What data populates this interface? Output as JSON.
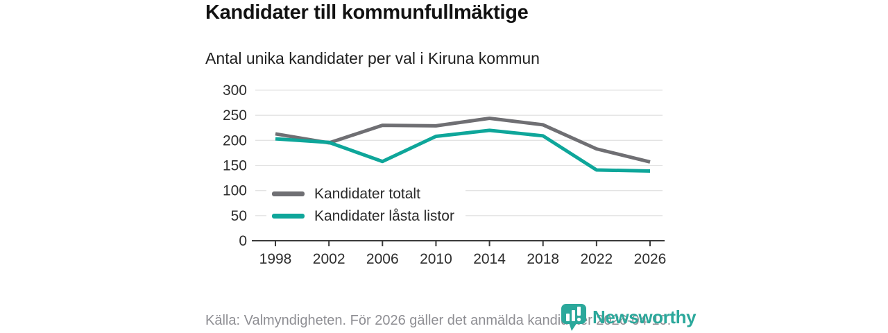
{
  "header": {
    "title": "Kandidater till kommunfullmäktige",
    "subtitle": "Antal unika kandidater per val i Kiruna kommun"
  },
  "chart_data": {
    "type": "line",
    "title": "Kandidater till kommunfullmäktige",
    "subtitle": "Antal unika kandidater per val i Kiruna kommun",
    "categories": [
      "1998",
      "2002",
      "2006",
      "2010",
      "2014",
      "2018",
      "2022",
      "2026"
    ],
    "series": [
      {
        "name": "Kandidater totalt",
        "color": "#6F6F73",
        "values": [
          213,
          195,
          230,
          229,
          244,
          231,
          183,
          157
        ]
      },
      {
        "name": "Kandidater låsta listor",
        "color": "#0EA69A",
        "values": [
          203,
          196,
          158,
          208,
          220,
          209,
          141,
          139
        ]
      }
    ],
    "xlabel": "",
    "ylabel": "",
    "ylim": [
      0,
      300
    ],
    "ytick_step": 50,
    "grid": "horizontal",
    "legend_position": "inside-bottom-left"
  },
  "footer": {
    "source": "Källa: Valmyndigheten. För 2026 gäller det anmälda kandidater 2026-04-10."
  },
  "logo": {
    "text": "Newsworthy",
    "icon": "newsworthy-speech-bubble-bar-chart-icon",
    "color": "#2BA89B"
  },
  "colors": {
    "grid": "#E3E3E3",
    "axis": "#3A3A3A",
    "tick_label": "#2E2E2E",
    "title_text": "#111111",
    "muted_text": "#8E8E93"
  }
}
